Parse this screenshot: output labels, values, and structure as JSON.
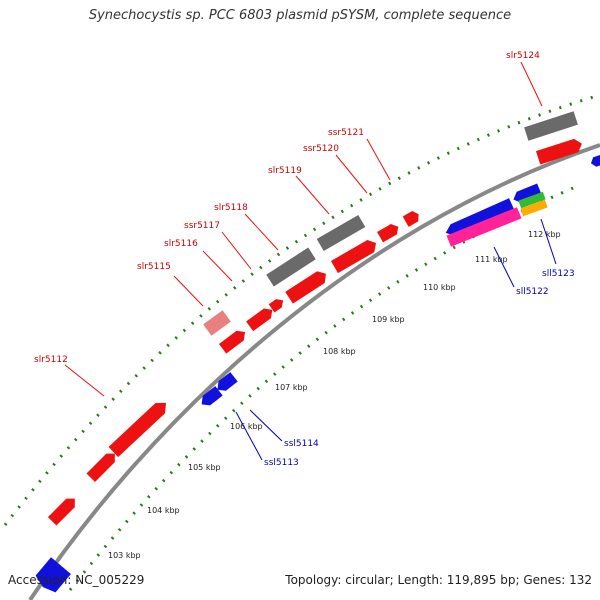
{
  "title": "Synechocystis sp. PCC 6803 plasmid pSYSM, complete sequence",
  "footer": {
    "accession": "Accession: NC_005229",
    "summary": "Topology: circular; Length: 119,895 bp; Genes: 132"
  },
  "colors": {
    "forward_gene": "#ee1111",
    "reverse_gene": "#1111dd",
    "pseudogene": "#6a6a6a",
    "light_gene": "#e88080",
    "pink_feature": "#ff2299",
    "green_feature": "#33bb33",
    "orange_feature": "#ffaa00",
    "backbone": "#888888",
    "tick": "#2a7a1a"
  },
  "kbp_labels": [
    "103 kbp",
    "104 kbp",
    "105 kbp",
    "106 kbp",
    "107 kbp",
    "108 kbp",
    "109 kbp",
    "110 kbp",
    "111 kbp",
    "112 kbp"
  ],
  "gene_labels_forward": [
    "slr5112",
    "slr5115",
    "slr5116",
    "ssr5117",
    "slr5118",
    "slr5119",
    "ssr5120",
    "ssr5121",
    "slr5124"
  ],
  "gene_labels_reverse": [
    "ssl5113",
    "ssl5114",
    "sll5122",
    "sll5123"
  ]
}
